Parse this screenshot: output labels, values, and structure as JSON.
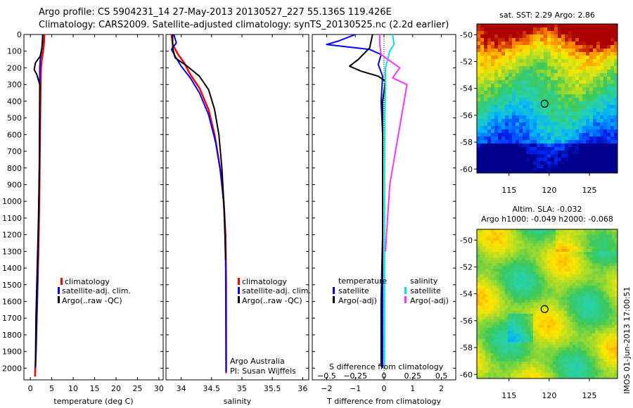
{
  "header": {
    "line1": "Argo profile: CS 5904231_14 27-May-2013 20130527_227 55.136S 119.426E",
    "line2": "Climatology: CARS2009. Satellite-adjusted climatology: synTS_20130525.nc (2.2d earlier)"
  },
  "colors": {
    "climatology": "#ff0000",
    "satellite": "#0000ff",
    "argo": "#000000",
    "satellite_s": "#00e5e5",
    "argo_s": "#ff33ff"
  },
  "chart_data": [
    {
      "type": "line",
      "id": "temperature",
      "xlabel": "temperature (deg C)",
      "xlim": [
        -1.5,
        31
      ],
      "xticks": [
        0,
        5,
        10,
        15,
        20,
        25,
        30
      ],
      "ylim": [
        2070,
        0
      ],
      "yticks": [
        0,
        100,
        200,
        300,
        400,
        500,
        600,
        700,
        800,
        900,
        1000,
        1100,
        1200,
        1300,
        1400,
        1500,
        1600,
        1700,
        1800,
        1900,
        2000
      ],
      "legend": [
        "climatology",
        "satellite-adj. clim.",
        "Argo(..raw -QC)"
      ],
      "series": [
        {
          "name": "climatology",
          "color": "#ff0000",
          "width": 2.5,
          "x": [
            3.3,
            3.2,
            3.0,
            2.7,
            2.5,
            2.4,
            2.3,
            2.2,
            2.1,
            1.9,
            1.6,
            1.3,
            1.1
          ],
          "y": [
            0,
            50,
            100,
            150,
            200,
            300,
            500,
            800,
            1000,
            1300,
            1600,
            1900,
            2050
          ]
        },
        {
          "name": "satellite-adj. clim.",
          "color": "#0000ff",
          "width": 2,
          "x": [
            2.9,
            2.85,
            2.6,
            2.3,
            2.2,
            2.2,
            2.15,
            2.1,
            2.0,
            1.8,
            1.6,
            1.3,
            1.2
          ],
          "y": [
            0,
            50,
            100,
            150,
            200,
            300,
            500,
            800,
            1000,
            1300,
            1600,
            1900,
            2000
          ]
        },
        {
          "name": "Argo(..raw -QC)",
          "color": "#000000",
          "width": 2,
          "x": [
            2.9,
            2.7,
            2.3,
            1.2,
            0.9,
            1.5,
            2.2,
            2.2,
            2.1,
            1.9,
            1.6,
            1.3,
            1.2
          ],
          "y": [
            0,
            80,
            130,
            170,
            210,
            240,
            300,
            500,
            800,
            1100,
            1400,
            1700,
            1990
          ]
        }
      ]
    },
    {
      "type": "line",
      "id": "salinity",
      "xlabel": "salinity",
      "xlim": [
        33.75,
        36.1
      ],
      "xticks": [
        34,
        34.5,
        35,
        35.5,
        36
      ],
      "xticklabels": [
        "34",
        "34.5",
        "35",
        "35.5",
        "36"
      ],
      "ylim": [
        2070,
        0
      ],
      "legend": [
        "climatology",
        "satellite-adj. clim.",
        "Argo(..raw -QC)"
      ],
      "annotations": [
        "Argo Australia",
        "PI: Susan Wijffels"
      ],
      "series": [
        {
          "name": "climatology",
          "color": "#ff0000",
          "width": 2.5,
          "x": [
            33.84,
            33.86,
            33.95,
            34.05,
            34.15,
            34.3,
            34.45,
            34.55,
            34.64,
            34.7,
            34.73,
            34.74,
            34.74
          ],
          "y": [
            0,
            60,
            120,
            170,
            240,
            320,
            450,
            600,
            800,
            1000,
            1200,
            1500,
            2030
          ]
        },
        {
          "name": "satellite-adj. clim.",
          "color": "#0000ff",
          "width": 2,
          "x": [
            33.88,
            33.92,
            33.84,
            33.9,
            34.0,
            34.15,
            34.3,
            34.45,
            34.57,
            34.66,
            34.71,
            34.73,
            34.74
          ],
          "y": [
            0,
            50,
            90,
            130,
            190,
            260,
            350,
            480,
            650,
            850,
            1050,
            1300,
            2020
          ]
        },
        {
          "name": "Argo(..raw -QC)",
          "color": "#000000",
          "width": 2,
          "x": [
            33.86,
            33.86,
            33.9,
            34.1,
            34.3,
            34.45,
            34.55,
            34.62,
            34.67,
            34.7,
            34.72,
            34.73
          ],
          "y": [
            0,
            80,
            140,
            190,
            250,
            330,
            450,
            600,
            800,
            1000,
            1200,
            1350
          ]
        }
      ]
    },
    {
      "type": "line",
      "id": "difference",
      "xlabel": "T difference from climatology",
      "xlabel2": "S difference from climatology",
      "xlim": [
        -2.5,
        2.5
      ],
      "xticks": [
        -2,
        -1,
        0,
        1,
        2
      ],
      "xticklabels": [
        "−2",
        "−1",
        "0",
        "1",
        "2"
      ],
      "xticks2": [
        -2,
        -1,
        0,
        1,
        2
      ],
      "xticklabels2": [
        "−0.5",
        "−0.25",
        "0",
        "0.25",
        "0.5"
      ],
      "ylim": [
        2070,
        0
      ],
      "legend_left_title": "temperature",
      "legend_right_title": "salinity",
      "legend_left": [
        "satellite",
        "Argo(-adj)"
      ],
      "legend_right": [
        "satellite",
        "Argo(-adj)"
      ],
      "series": [
        {
          "name": "satellite",
          "group": "temperature",
          "color": "#0000ff",
          "width": 2,
          "x": [
            -1.0,
            -1.6,
            -2.0,
            -0.5,
            -0.1,
            -0.2,
            -0.05,
            -0.1,
            -0.05,
            -0.05,
            -0.05,
            -0.05,
            -0.05
          ],
          "y": [
            0,
            40,
            60,
            90,
            120,
            180,
            250,
            400,
            600,
            800,
            1200,
            1600,
            2000
          ]
        },
        {
          "name": "Argo(-adj)",
          "group": "temperature",
          "color": "#000000",
          "width": 2,
          "x": [
            -0.4,
            -0.5,
            -0.9,
            -1.2,
            -0.8,
            -0.2,
            0.05,
            -0.05,
            -0.05,
            -0.05,
            -0.05,
            -0.1,
            -0.1
          ],
          "y": [
            0,
            80,
            150,
            190,
            220,
            250,
            280,
            400,
            600,
            800,
            1200,
            1600,
            1990
          ]
        },
        {
          "name": "satellite",
          "group": "salinity",
          "color": "#00e5e5",
          "width": 2,
          "x": [
            0.3,
            0.35,
            0.2,
            0.05,
            0.05,
            0.03,
            0.02,
            0.02,
            0.02,
            0.02
          ],
          "y": [
            0,
            60,
            100,
            200,
            300,
            500,
            800,
            1200,
            1600,
            2000
          ]
        },
        {
          "name": "Argo(-adj)",
          "group": "salinity",
          "color": "#ff33ff",
          "width": 2,
          "x": [
            -0.15,
            -0.15,
            -0.1,
            0.55,
            0.3,
            0.8,
            0.7,
            0.5,
            0.2,
            0.05
          ],
          "y": [
            0,
            60,
            120,
            200,
            260,
            300,
            400,
            600,
            900,
            1300
          ]
        }
      ]
    },
    {
      "type": "heatmap",
      "id": "sst-map",
      "title": "sat. SST: 2.29 Argo: 2.86",
      "xlim": [
        111,
        128.5
      ],
      "ylim": [
        -60.3,
        -49.2
      ],
      "xticks": [
        115,
        120,
        125
      ],
      "yticks": [
        -50,
        -52,
        -54,
        -56,
        -58,
        -60
      ],
      "marker": {
        "lon": 119.426,
        "lat": -55.136
      }
    },
    {
      "type": "heatmap",
      "id": "sla-map",
      "title": "Altim. SLA: -0.032",
      "title2": "Argo h1000: -0.049 h2000: -0.068",
      "xlim": [
        111,
        128.5
      ],
      "ylim": [
        -60.3,
        -49.2
      ],
      "xticks": [
        115,
        120,
        125
      ],
      "yticks": [
        -50,
        -52,
        -54,
        -56,
        -58,
        -60
      ],
      "marker": {
        "lon": 119.426,
        "lat": -55.136
      }
    }
  ],
  "footer": {
    "stamp": "IMOS 01-Jun-2013 17:00:51"
  }
}
